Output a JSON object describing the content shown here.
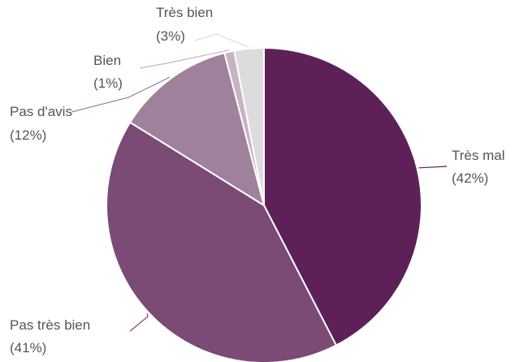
{
  "chart_data": {
    "type": "pie",
    "slices": [
      {
        "name": "Très mal",
        "value": 42,
        "label": "(42%)",
        "color": "#5e2157"
      },
      {
        "name": "Pas très bien",
        "value": 41,
        "label": "(41%)",
        "color": "#7b4a75"
      },
      {
        "name": "Pas d'avis",
        "value": 12,
        "label": "(12%)",
        "color": "#a0819b"
      },
      {
        "name": "Bien",
        "value": 1,
        "label": "(1%)",
        "color": "#c6b4c3"
      },
      {
        "name": "Très bien",
        "value": 3,
        "label": "(3%)",
        "color": "#dcdcdc"
      }
    ],
    "start_angle_deg": 0,
    "direction": "clockwise",
    "legend": "none",
    "label_style": "outside-with-leader-lines"
  }
}
